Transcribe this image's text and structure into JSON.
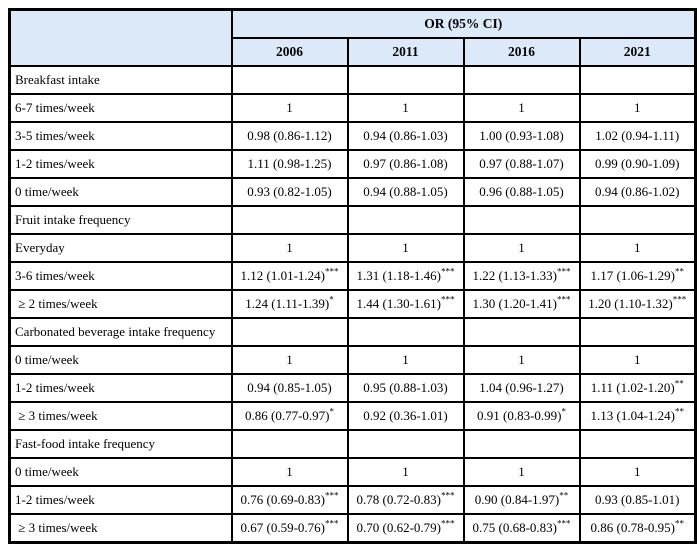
{
  "colors": {
    "header_bg": "#dbe9f8",
    "border": "#000000",
    "text": "#000000"
  },
  "table": {
    "group_header": "OR (95% CI)",
    "years": [
      "2006",
      "2011",
      "2016",
      "2021"
    ],
    "rows": [
      {
        "label": "Breakfast intake",
        "type": "section",
        "values": [
          {
            "or": "",
            "sig": ""
          },
          {
            "or": "",
            "sig": ""
          },
          {
            "or": "",
            "sig": ""
          },
          {
            "or": "",
            "sig": ""
          }
        ]
      },
      {
        "label": "6-7 times/week",
        "type": "data",
        "values": [
          {
            "or": "1",
            "sig": ""
          },
          {
            "or": "1",
            "sig": ""
          },
          {
            "or": "1",
            "sig": ""
          },
          {
            "or": "1",
            "sig": ""
          }
        ]
      },
      {
        "label": "3-5 times/week",
        "type": "data",
        "values": [
          {
            "or": "0.98 (0.86-1.12)",
            "sig": ""
          },
          {
            "or": "0.94 (0.86-1.03)",
            "sig": ""
          },
          {
            "or": "1.00 (0.93-1.08)",
            "sig": ""
          },
          {
            "or": "1.02 (0.94-1.11)",
            "sig": ""
          }
        ]
      },
      {
        "label": "1-2 times/week",
        "type": "data",
        "values": [
          {
            "or": "1.11 (0.98-1.25)",
            "sig": ""
          },
          {
            "or": "0.97 (0.86-1.08)",
            "sig": ""
          },
          {
            "or": "0.97 (0.88-1.07)",
            "sig": ""
          },
          {
            "or": "0.99 (0.90-1.09)",
            "sig": ""
          }
        ]
      },
      {
        "label": "0 time/week",
        "type": "data",
        "values": [
          {
            "or": "0.93 (0.82-1.05)",
            "sig": ""
          },
          {
            "or": "0.94 (0.88-1.05)",
            "sig": ""
          },
          {
            "or": "0.96 (0.88-1.05)",
            "sig": ""
          },
          {
            "or": "0.94 (0.86-1.02)",
            "sig": ""
          }
        ]
      },
      {
        "label": "Fruit intake frequency",
        "type": "section",
        "values": [
          {
            "or": "",
            "sig": ""
          },
          {
            "or": "",
            "sig": ""
          },
          {
            "or": "",
            "sig": ""
          },
          {
            "or": "",
            "sig": ""
          }
        ]
      },
      {
        "label": "Everyday",
        "type": "data",
        "values": [
          {
            "or": "1",
            "sig": ""
          },
          {
            "or": "1",
            "sig": ""
          },
          {
            "or": "1",
            "sig": ""
          },
          {
            "or": "1",
            "sig": ""
          }
        ]
      },
      {
        "label": "3-6 times/week",
        "type": "data",
        "values": [
          {
            "or": "1.12 (1.01-1.24)",
            "sig": "***"
          },
          {
            "or": "1.31 (1.18-1.46)",
            "sig": "***"
          },
          {
            "or": "1.22 (1.13-1.33)",
            "sig": "***"
          },
          {
            "or": "1.17 (1.06-1.29)",
            "sig": "**"
          }
        ]
      },
      {
        "label": " ≥ 2 times/week",
        "type": "data",
        "values": [
          {
            "or": "1.24 (1.11-1.39)",
            "sig": "*"
          },
          {
            "or": "1.44 (1.30-1.61)",
            "sig": "***"
          },
          {
            "or": "1.30 (1.20-1.41)",
            "sig": "***"
          },
          {
            "or": "1.20 (1.10-1.32)",
            "sig": "***"
          }
        ]
      },
      {
        "label": "Carbonated beverage intake frequency",
        "type": "section",
        "values": [
          {
            "or": "",
            "sig": ""
          },
          {
            "or": "",
            "sig": ""
          },
          {
            "or": "",
            "sig": ""
          },
          {
            "or": "",
            "sig": ""
          }
        ]
      },
      {
        "label": "0 time/week",
        "type": "data",
        "values": [
          {
            "or": "1",
            "sig": ""
          },
          {
            "or": "1",
            "sig": ""
          },
          {
            "or": "1",
            "sig": ""
          },
          {
            "or": "1",
            "sig": ""
          }
        ]
      },
      {
        "label": "1-2 times/week",
        "type": "data",
        "values": [
          {
            "or": "0.94 (0.85-1.05)",
            "sig": ""
          },
          {
            "or": "0.95 (0.88-1.03)",
            "sig": ""
          },
          {
            "or": "1.04 (0.96-1.27)",
            "sig": ""
          },
          {
            "or": "1.11 (1.02-1.20)",
            "sig": "**"
          }
        ]
      },
      {
        "label": " ≥ 3 times/week",
        "type": "data",
        "values": [
          {
            "or": "0.86 (0.77-0.97)",
            "sig": "*"
          },
          {
            "or": "0.92 (0.36-1.01)",
            "sig": ""
          },
          {
            "or": "0.91 (0.83-0.99)",
            "sig": "*"
          },
          {
            "or": "1.13 (1.04-1.24)",
            "sig": "**"
          }
        ]
      },
      {
        "label": "Fast-food intake frequency",
        "type": "section",
        "values": [
          {
            "or": "",
            "sig": ""
          },
          {
            "or": "",
            "sig": ""
          },
          {
            "or": "",
            "sig": ""
          },
          {
            "or": "",
            "sig": ""
          }
        ]
      },
      {
        "label": "0 time/week",
        "type": "data",
        "values": [
          {
            "or": "1",
            "sig": ""
          },
          {
            "or": "1",
            "sig": ""
          },
          {
            "or": "1",
            "sig": ""
          },
          {
            "or": "1",
            "sig": ""
          }
        ]
      },
      {
        "label": "1-2 times/week",
        "type": "data",
        "values": [
          {
            "or": "0.76 (0.69-0.83)",
            "sig": "***"
          },
          {
            "or": "0.78 (0.72-0.83)",
            "sig": "***"
          },
          {
            "or": "0.90 (0.84-1.97)",
            "sig": "**"
          },
          {
            "or": "0.93 (0.85-1.01)",
            "sig": ""
          }
        ]
      },
      {
        "label": " ≥ 3 times/week",
        "type": "data",
        "values": [
          {
            "or": "0.67 (0.59-0.76)",
            "sig": "***"
          },
          {
            "or": "0.70 (0.62-0.79)",
            "sig": "***"
          },
          {
            "or": "0.75 (0.68-0.83)",
            "sig": "***"
          },
          {
            "or": "0.86 (0.78-0.95)",
            "sig": "**"
          }
        ]
      }
    ]
  }
}
